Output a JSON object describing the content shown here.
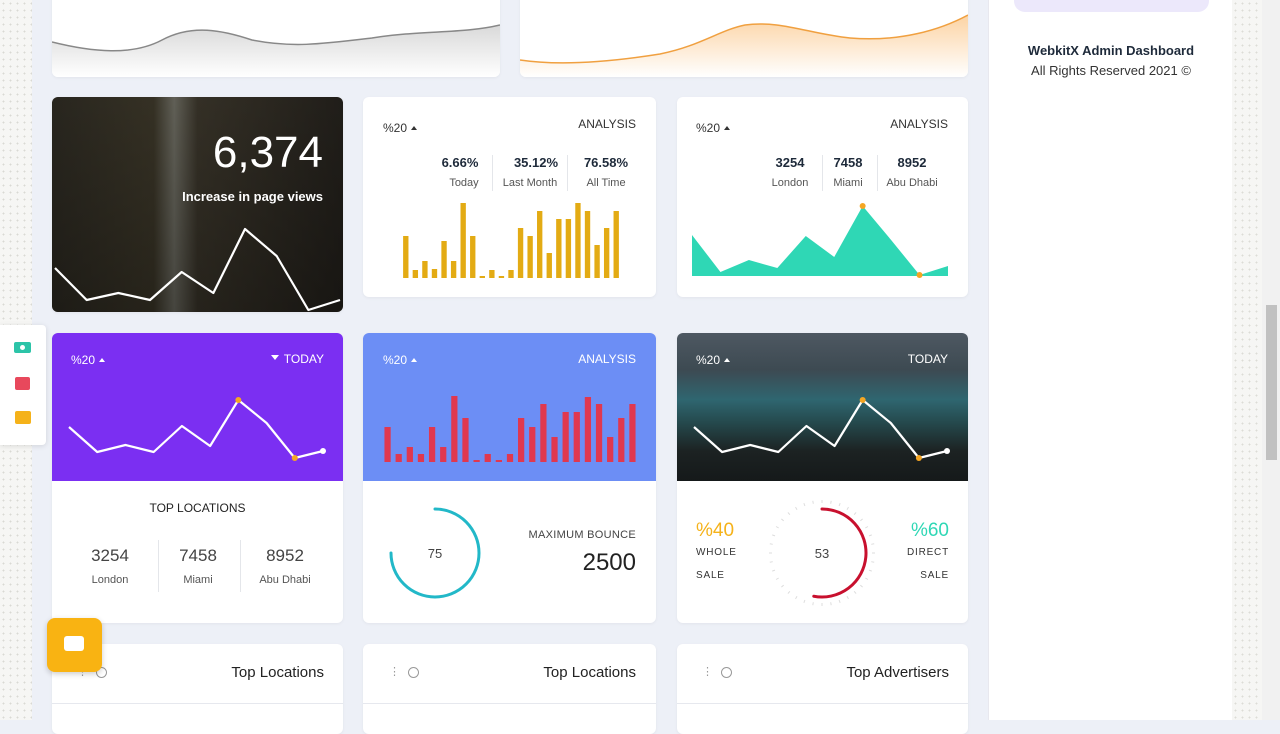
{
  "sidebar": {
    "brand": "WebkitX Admin Dashboard",
    "copyright": "All Rights Reserved 2021 ©"
  },
  "cards": [
    {
      "value": "6,374",
      "caption": "Increase in page views",
      "chart": {
        "type": "line",
        "color": "#ffffff",
        "values": [
          44,
          12,
          19,
          12,
          40,
          19,
          83,
          56,
          2,
          12
        ],
        "ylim": [
          0,
          100
        ]
      }
    },
    {
      "badge": "%20",
      "label": "ANALYSIS",
      "stats": [
        {
          "value": "6.66%",
          "label": "Today"
        },
        {
          "value": "35.12%",
          "label": "Last Month"
        },
        {
          "value": "76.58%",
          "label": "All Time"
        }
      ],
      "chart": {
        "type": "bar",
        "color": "#e3ab14",
        "values": [
          42,
          8,
          17,
          9,
          37,
          17,
          75,
          42,
          2,
          8,
          2,
          8,
          50,
          42,
          67,
          25,
          59,
          59,
          75,
          67,
          33,
          50,
          67
        ],
        "ylim": [
          0,
          80
        ]
      }
    },
    {
      "badge": "%20",
      "label": "ANALYSIS",
      "stats": [
        {
          "value": "3254",
          "label": "London"
        },
        {
          "value": "7458",
          "label": "Miami"
        },
        {
          "value": "8952",
          "label": "Abu Dhabi"
        }
      ],
      "chart": {
        "type": "area",
        "color": "#2fd7b5",
        "values": [
          41,
          4,
          16,
          8,
          40,
          19,
          70,
          36,
          1,
          10
        ],
        "ylim": [
          0,
          80
        ],
        "markers": [
          6,
          8
        ],
        "marker_color": "#f5a623"
      }
    },
    {
      "badge": "%20",
      "label": "TODAY",
      "chart": {
        "type": "line",
        "color": "#ffffff",
        "values": [
          43,
          18,
          25,
          18,
          44,
          24,
          70,
          47,
          12,
          19
        ],
        "ylim": [
          0,
          90
        ],
        "markers": [
          6,
          8
        ],
        "marker_color": "#f5a623"
      },
      "title": "TOP LOCATIONS",
      "stats": [
        {
          "value": "3254",
          "label": "London"
        },
        {
          "value": "7458",
          "label": "Miami"
        },
        {
          "value": "8952",
          "label": "Abu Dhabi"
        }
      ]
    },
    {
      "badge": "%20",
      "label": "ANALYSIS",
      "chart": {
        "type": "bar",
        "color": "#e0384f",
        "values": [
          35,
          8,
          15,
          8,
          35,
          15,
          66,
          44,
          2,
          8,
          2,
          8,
          44,
          35,
          58,
          25,
          50,
          50,
          65,
          58,
          25,
          44,
          58
        ],
        "ylim": [
          0,
          70
        ]
      },
      "gauge": {
        "value": 75,
        "range": [
          0,
          100
        ],
        "color": "#22b8c8"
      },
      "stat_label": "MAXIMUM BOUNCE",
      "stat_value": "2500"
    },
    {
      "badge": "%20",
      "label": "TODAY",
      "chart": {
        "type": "line",
        "color": "#ffffff",
        "values": [
          43,
          18,
          25,
          18,
          44,
          24,
          70,
          47,
          12,
          19
        ],
        "ylim": [
          0,
          90
        ],
        "markers": [
          6,
          8
        ],
        "marker_color": "#f5a623"
      },
      "gauge": {
        "value": 53,
        "range": [
          0,
          100
        ],
        "color": "#c8102e"
      },
      "left": {
        "value": "%40",
        "lines": [
          "WHOLE",
          "SALE"
        ]
      },
      "right": {
        "value": "%60",
        "lines": [
          "DIRECT",
          "SALE"
        ]
      }
    }
  ],
  "panels": [
    {
      "title": "Top Locations"
    },
    {
      "title": "Top Locations"
    },
    {
      "title": "Top Advertisers"
    }
  ]
}
